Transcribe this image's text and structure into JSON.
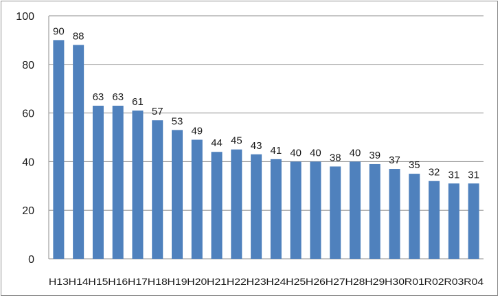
{
  "chart_data": {
    "type": "bar",
    "title": "",
    "xlabel": "",
    "ylabel": "",
    "categories": [
      "H13",
      "H14",
      "H15",
      "H16",
      "H17",
      "H18",
      "H19",
      "H20",
      "H21",
      "H22",
      "H23",
      "H24",
      "H25",
      "H26",
      "H27",
      "H28",
      "H29",
      "H30",
      "R01",
      "R02",
      "R03",
      "R04"
    ],
    "values": [
      90,
      88,
      63,
      63,
      61,
      57,
      53,
      49,
      44,
      45,
      43,
      41,
      40,
      40,
      38,
      40,
      39,
      37,
      35,
      32,
      31,
      31
    ],
    "ylim": [
      0,
      100
    ],
    "yticks": [
      0,
      20,
      40,
      60,
      80,
      100
    ],
    "grid": true,
    "legend": "none",
    "bar_color": "#4f81bd",
    "grid_color": "#8c8c8c"
  }
}
